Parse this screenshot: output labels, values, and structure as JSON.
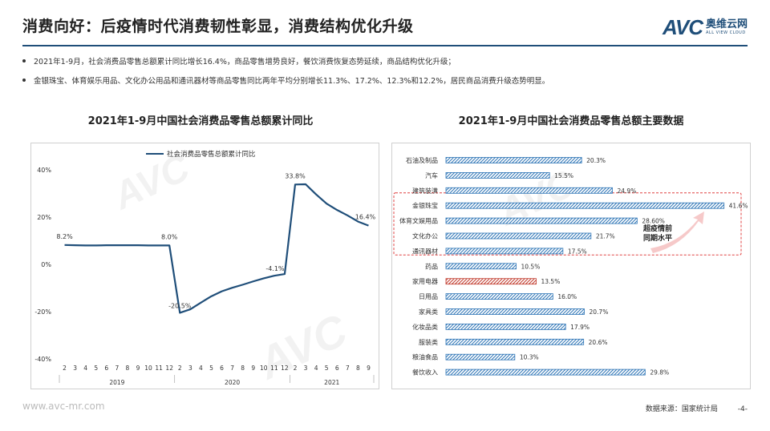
{
  "header": {
    "title": "消费向好：后疫情时代消费韧性彰显，消费结构优化升级",
    "logo_mark": "AVC",
    "logo_cn": "奥维云网",
    "logo_en": "ALL VIEW CLOUD"
  },
  "bullets": [
    "2021年1-9月，社会消费品零售总额累计同比增长16.4%，商品零售增势良好，餐饮消费恢复态势延续，商品结构优化升级；",
    "金银珠宝、体育娱乐用品、文化办公用品和通讯器材等商品零售同比两年平均分别增长11.3%、17.2%、12.3%和12.2%，居民商品消费升级态势明显。"
  ],
  "footer": {
    "website": "www.avc-mr.com",
    "source": "数据来源：国家统计局",
    "page": "-4-"
  },
  "chart_data": [
    {
      "type": "line",
      "title": "2021年1-9月中国社会消费品零售总额累计同比",
      "legend": "社会消费品零售总额累计同比",
      "legend_position": "top-left",
      "x_labels": [
        "2",
        "3",
        "4",
        "5",
        "6",
        "7",
        "8",
        "9",
        "10",
        "11",
        "12",
        "2",
        "3",
        "4",
        "5",
        "6",
        "7",
        "8",
        "9",
        "10",
        "11",
        "12",
        "2",
        "3",
        "4",
        "5",
        "6",
        "7",
        "8",
        "9"
      ],
      "year_groups": [
        {
          "label": "2019",
          "count": 11
        },
        {
          "label": "2020",
          "count": 11
        },
        {
          "label": "2021",
          "count": 8
        }
      ],
      "series": [
        {
          "values": [
            8.2,
            8.1,
            8.0,
            8.0,
            8.1,
            8.1,
            8.1,
            8.1,
            8.0,
            8.0,
            8.0,
            -20.5,
            -19.0,
            -16.2,
            -13.5,
            -11.4,
            -9.9,
            -8.6,
            -7.2,
            -5.9,
            -4.8,
            -4.1,
            33.8,
            33.9,
            29.6,
            25.7,
            23.0,
            20.7,
            18.1,
            16.4
          ],
          "color": "#1f4e79"
        }
      ],
      "data_labels": [
        {
          "index": 0,
          "text": "8.2%"
        },
        {
          "index": 10,
          "text": "8.0%"
        },
        {
          "index": 11,
          "text": "-20.5%"
        },
        {
          "index": 21,
          "text": "-4.1%"
        },
        {
          "index": 22,
          "text": "33.8%"
        },
        {
          "index": 29,
          "text": "16.4%"
        }
      ],
      "ylim": [
        -40,
        40
      ],
      "yticks": [
        -40,
        -20,
        0,
        20,
        40
      ],
      "ytick_labels": [
        "-40%",
        "-20%",
        "0%",
        "20%",
        "40%"
      ],
      "grid": false
    },
    {
      "type": "bar",
      "orientation": "horizontal",
      "title": "2021年1-9月中国社会消费品零售总额主要数据",
      "categories": [
        "石油及制品",
        "汽车",
        "建筑装潢",
        "金银珠宝",
        "体育文娱用品",
        "文化办公",
        "通讯器材",
        "药品",
        "家用电器",
        "日用品",
        "家具类",
        "化妆品类",
        "服装类",
        "粮油食品",
        "餐饮收入"
      ],
      "values": [
        20.3,
        15.5,
        24.9,
        41.6,
        28.6,
        21.7,
        17.5,
        10.5,
        13.5,
        16.0,
        20.7,
        17.9,
        20.6,
        10.3,
        29.8
      ],
      "value_labels": [
        "20.3%",
        "15.5%",
        "24.9%",
        "41.6%",
        "28.60%",
        "21.7%",
        "17.5%",
        "10.5%",
        "13.5%",
        "16.0%",
        "20.7%",
        "17.9%",
        "20.6%",
        "10.3%",
        "29.8%"
      ],
      "bar_color": "#2e75b6",
      "highlight_color": "#c0392b",
      "highlight_index": 8,
      "xlim": [
        0,
        45
      ],
      "callout": {
        "text_line1": "超疫情前",
        "text_line2": "同期水平",
        "range": [
          3,
          6
        ],
        "border_color": "#e04040"
      }
    }
  ]
}
